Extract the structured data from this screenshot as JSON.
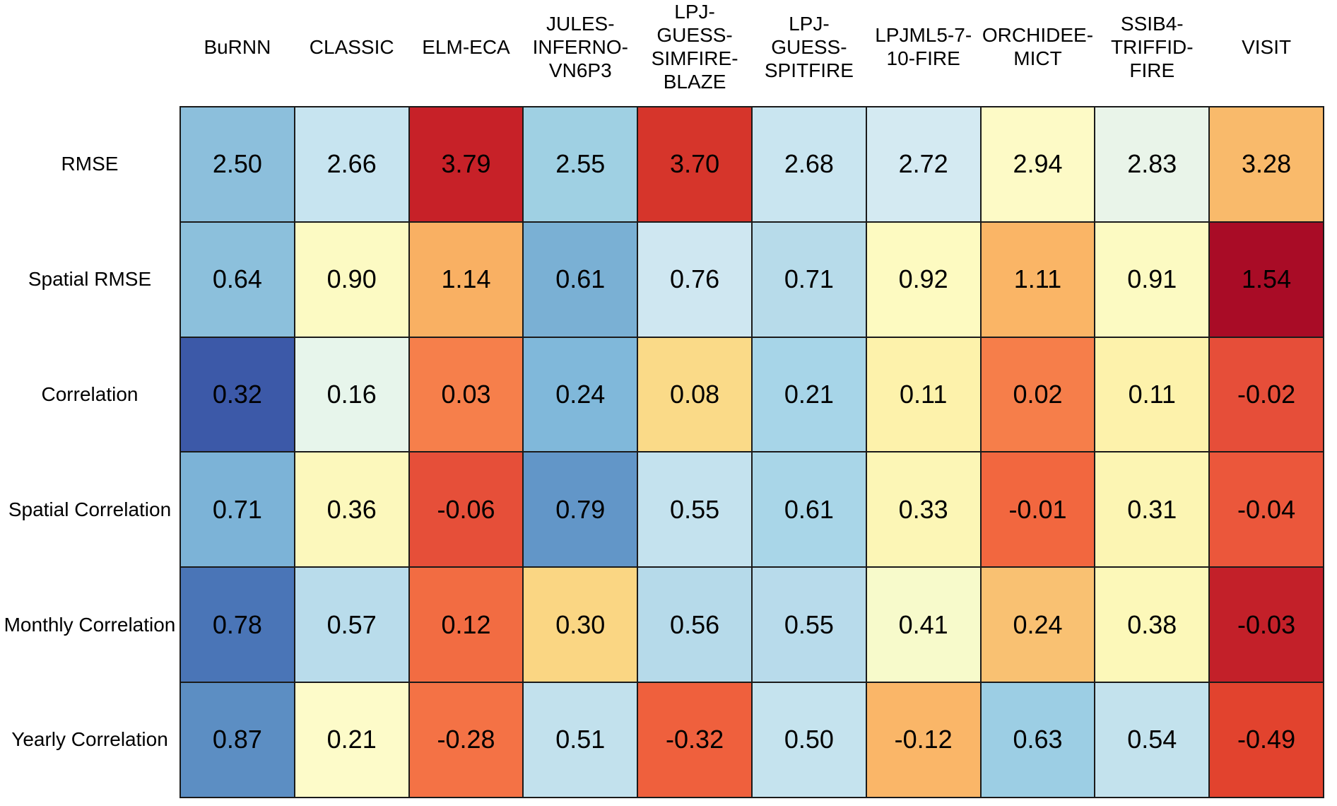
{
  "chart_data": {
    "type": "heatmap",
    "title": "",
    "decimals": 2,
    "legend": false,
    "columns": [
      [
        "BuRNN"
      ],
      [
        "CLASSIC"
      ],
      [
        "ELM-ECA"
      ],
      [
        "JULES-",
        "INFERNO-",
        "VN6P3"
      ],
      [
        "LPJ-",
        "GUESS-",
        "SIMFIRE-",
        "BLAZE"
      ],
      [
        "LPJ-",
        "GUESS-",
        "SPITFIRE"
      ],
      [
        "LPJML5-7-",
        "10-FIRE"
      ],
      [
        "ORCHIDEE-",
        "MICT"
      ],
      [
        "SSIB4-",
        "TRIFFID-",
        "FIRE"
      ],
      [
        "VISIT"
      ]
    ],
    "rows": [
      "RMSE",
      "Spatial RMSE",
      "Correlation",
      "Spatial Correlation",
      "Monthly Correlation",
      "Yearly Correlation"
    ],
    "values": [
      [
        2.5,
        2.66,
        3.79,
        2.55,
        3.7,
        2.68,
        2.72,
        2.94,
        2.83,
        3.28
      ],
      [
        0.64,
        0.9,
        1.14,
        0.61,
        0.76,
        0.71,
        0.92,
        1.11,
        0.91,
        1.54
      ],
      [
        0.32,
        0.16,
        0.03,
        0.24,
        0.08,
        0.21,
        0.11,
        0.02,
        0.11,
        -0.02
      ],
      [
        0.71,
        0.36,
        -0.06,
        0.79,
        0.55,
        0.61,
        0.33,
        -0.01,
        0.31,
        -0.04
      ],
      [
        0.78,
        0.57,
        0.12,
        0.3,
        0.56,
        0.55,
        0.41,
        0.24,
        0.38,
        -0.03
      ],
      [
        0.87,
        0.21,
        -0.28,
        0.51,
        -0.32,
        0.5,
        -0.12,
        0.63,
        0.54,
        -0.49
      ]
    ],
    "cell_colors": [
      [
        "#8CBFDC",
        "#C7E4F0",
        "#C72128",
        "#9FD0E3",
        "#D6352B",
        "#C9E5F0",
        "#D4EAF2",
        "#FDFAC6",
        "#E9F4E9",
        "#F9BA6B"
      ],
      [
        "#8CC0DC",
        "#FCFAC3",
        "#F9B063",
        "#7AB0D4",
        "#CFE7F1",
        "#B7DBEA",
        "#FDFAC1",
        "#FAB566",
        "#FCFAC2",
        "#A90C26"
      ],
      [
        "#3C59A8",
        "#E7F5EB",
        "#F67F4B",
        "#80B8DA",
        "#FADA88",
        "#A7D5E8",
        "#FDF2AB",
        "#F67E4A",
        "#FDF2AB",
        "#E64E39"
      ],
      [
        "#7CB3D7",
        "#FCF8BC",
        "#E64F39",
        "#6296C8",
        "#C4E2EE",
        "#A9D6E8",
        "#FCF6B6",
        "#F2673F",
        "#FCF5B3",
        "#EB573B"
      ],
      [
        "#4A75B7",
        "#B9DCEB",
        "#F26C42",
        "#FAD683",
        "#B6DAEA",
        "#B8DBEB",
        "#F7FACB",
        "#F9C172",
        "#FCF8B9",
        "#C32029"
      ],
      [
        "#5C8EC3",
        "#FDFBC9",
        "#F47245",
        "#C2E1ED",
        "#EF603D",
        "#C5E3EE",
        "#FAB668",
        "#9CCEE4",
        "#C3E2ED",
        "#E2432E"
      ]
    ],
    "colors": {
      "background": "#ffffff",
      "cell_border": "#1a1a1a",
      "text": "#000000"
    }
  }
}
